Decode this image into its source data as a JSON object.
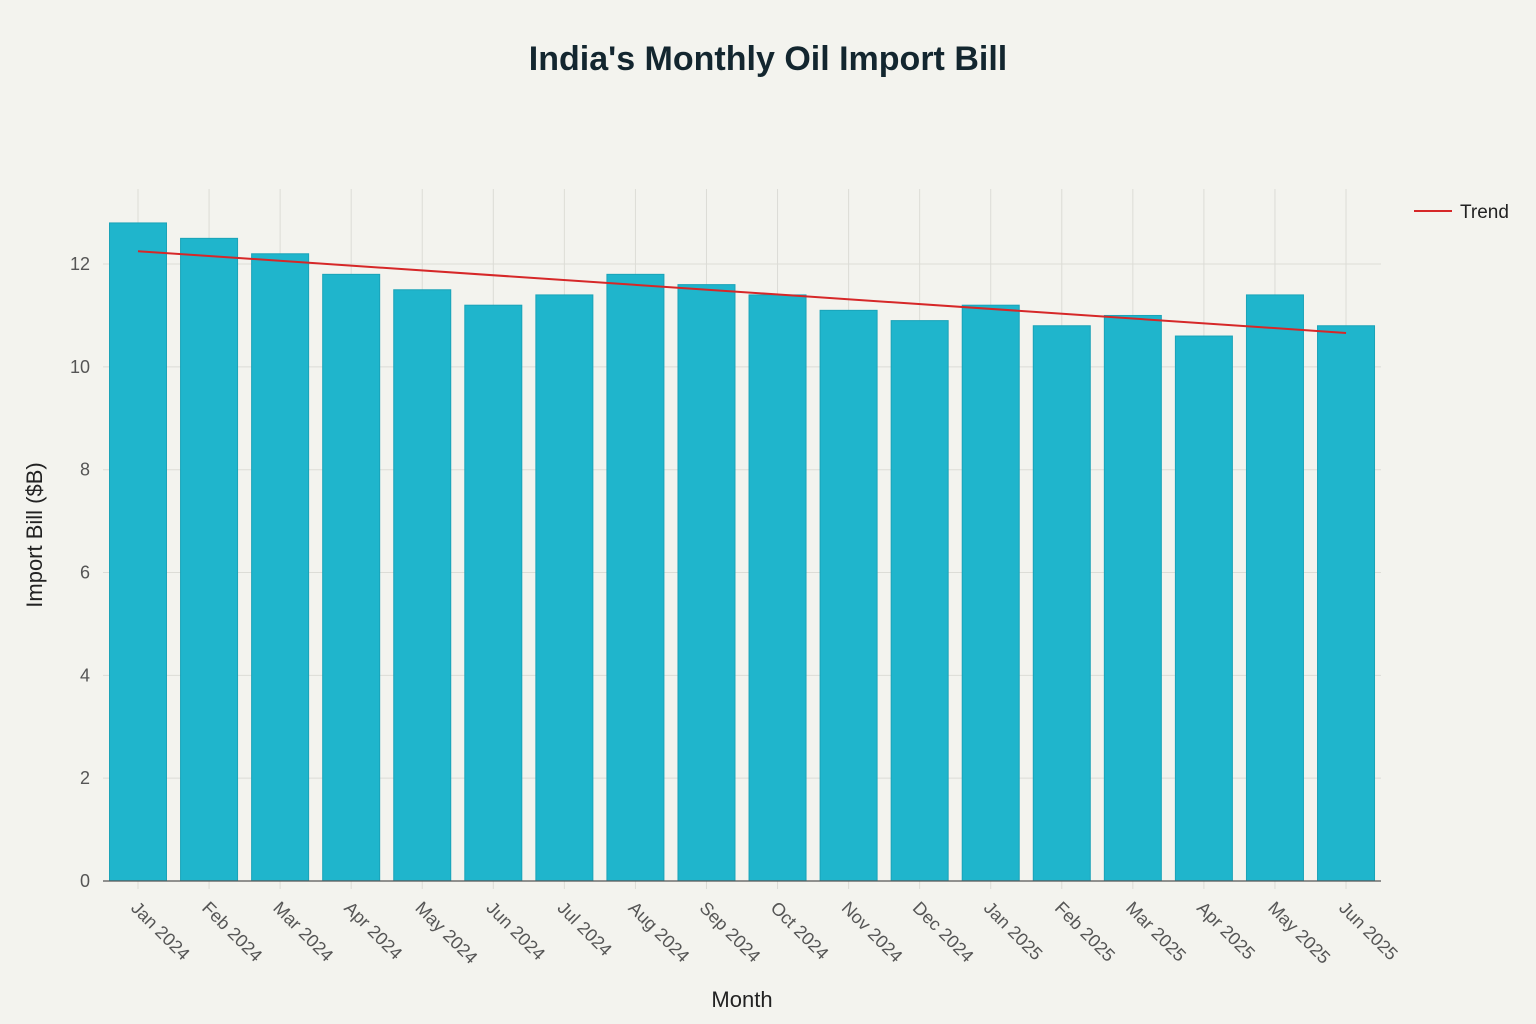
{
  "chart_data": {
    "type": "bar",
    "title": "India's Monthly Oil Import Bill",
    "xlabel": "Month",
    "ylabel": "Import Bill ($B)",
    "categories": [
      "Jan 2024",
      "Feb 2024",
      "Mar 2024",
      "Apr 2024",
      "May 2024",
      "Jun 2024",
      "Jul 2024",
      "Aug 2024",
      "Sep 2024",
      "Oct 2024",
      "Nov 2024",
      "Dec 2024",
      "Jan 2025",
      "Feb 2025",
      "Mar 2025",
      "Apr 2025",
      "May 2025",
      "Jun 2025"
    ],
    "values": [
      12.8,
      12.5,
      12.2,
      11.8,
      11.5,
      11.2,
      11.4,
      11.8,
      11.6,
      11.4,
      11.1,
      10.9,
      11.2,
      10.8,
      11.0,
      10.6,
      11.4,
      10.8
    ],
    "trend": {
      "name": "Trend",
      "start": 12.25,
      "end": 10.66,
      "color": "#d62728"
    },
    "bar_color": "#1fb5cc",
    "yticks": [
      0,
      2,
      4,
      6,
      8,
      10,
      12
    ],
    "ylim": [
      0,
      13.46
    ],
    "grid": true,
    "legend": "top-right"
  }
}
